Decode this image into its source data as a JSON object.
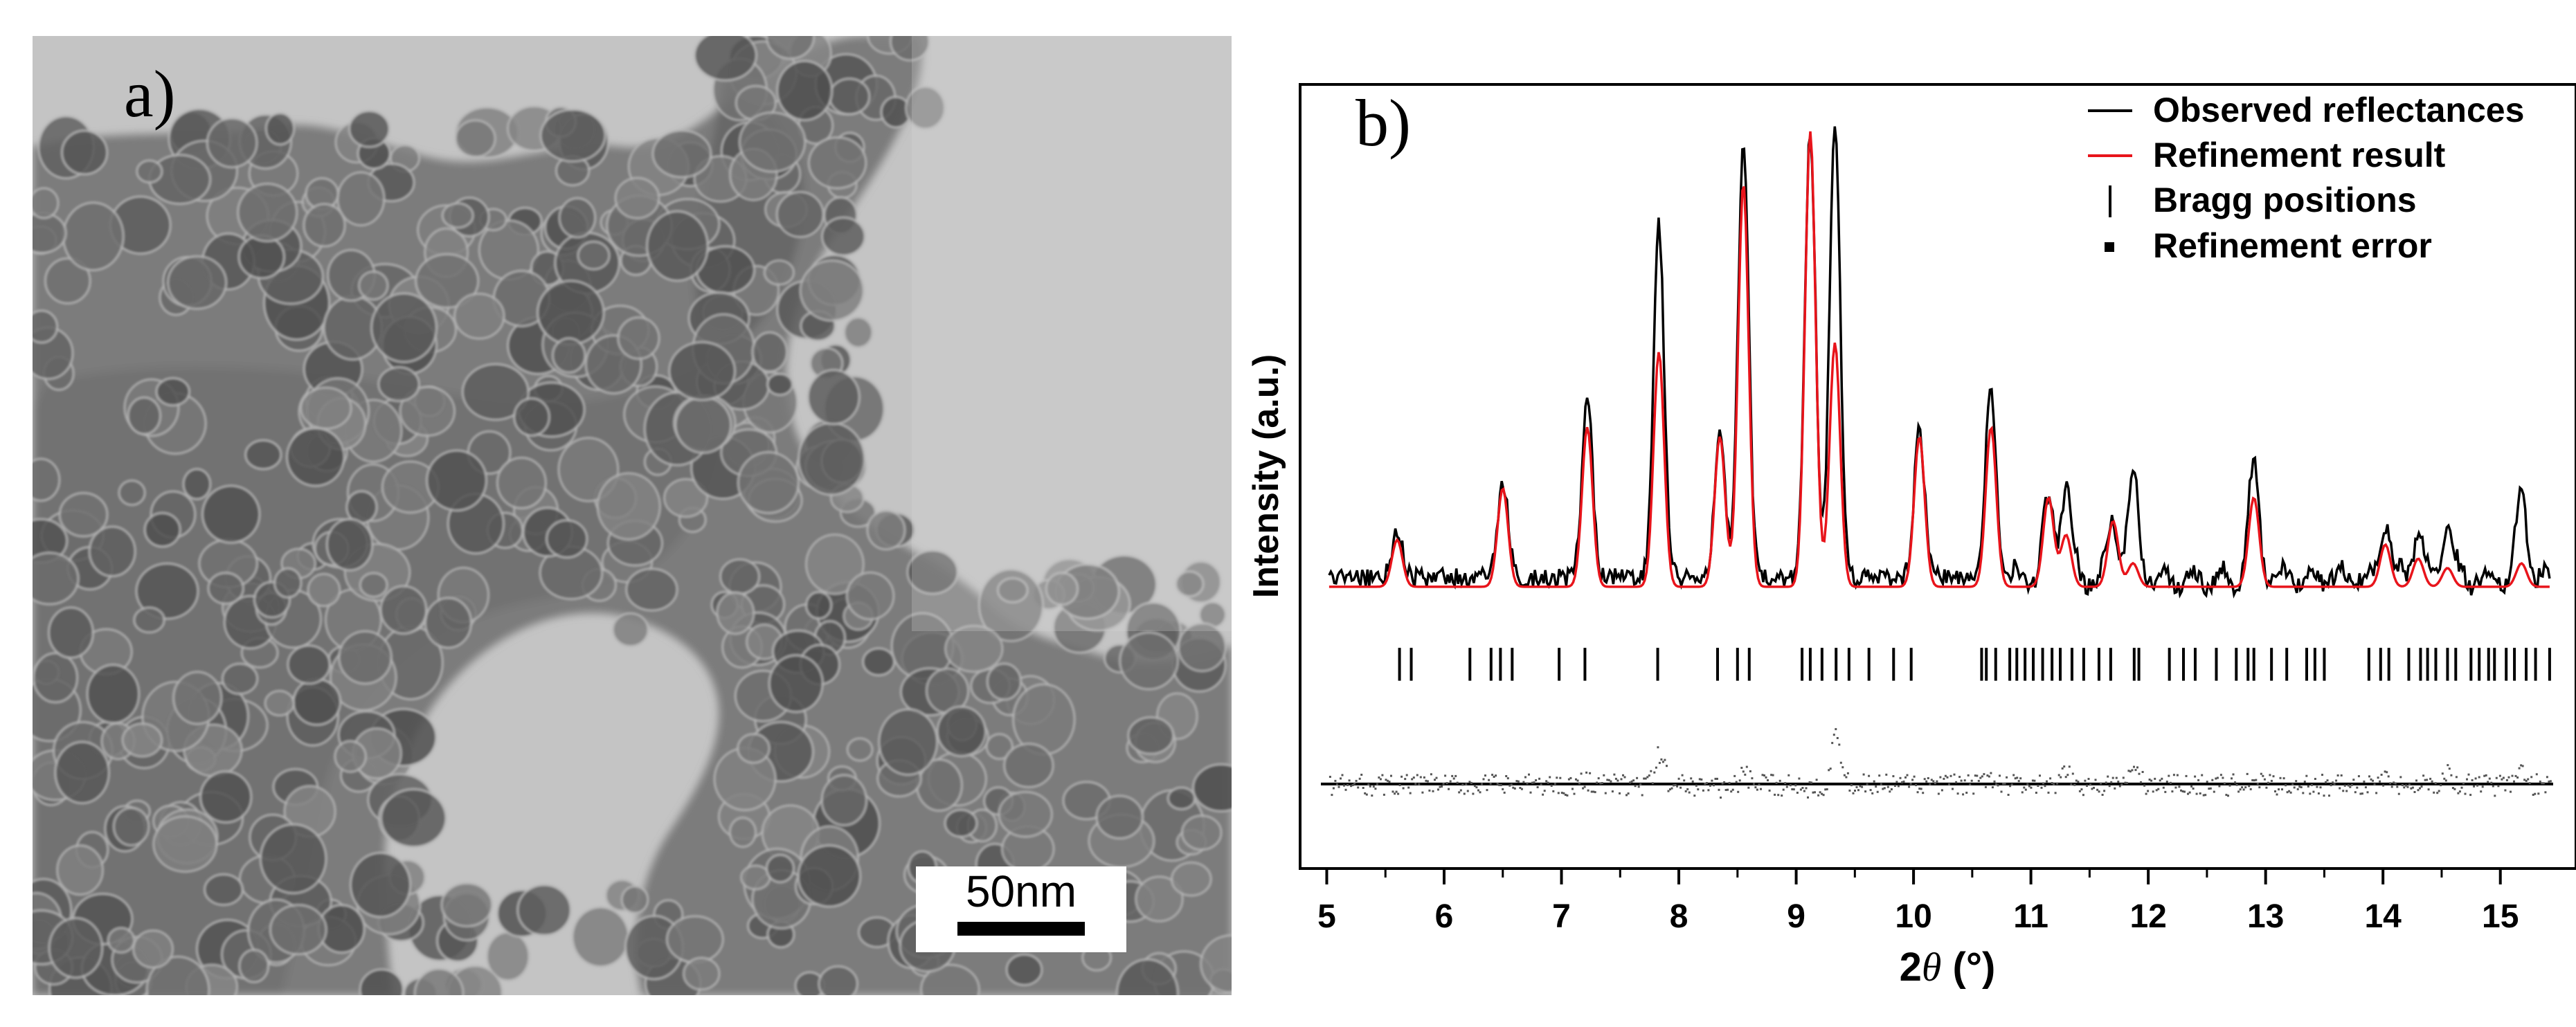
{
  "panel_a": {
    "label": "a)",
    "scale_bar": {
      "label": "50nm"
    }
  },
  "chart_data": {
    "type": "line",
    "panel_label": "b)",
    "xlabel_prefix": "2",
    "xlabel_symbol": "θ",
    "xlabel_suffix": " (°)",
    "ylabel": "Intensity (a.u.)",
    "xlim": [
      4.95,
      15.45
    ],
    "ylim": [
      -0.6,
      1.07
    ],
    "x_ticks": [
      "5",
      "6",
      "7",
      "8",
      "9",
      "10",
      "11",
      "12",
      "13",
      "14",
      "15"
    ],
    "legend": {
      "placement": "top-right",
      "entries": [
        "Observed reflectances",
        "Refinement result",
        "Bragg positions",
        "Refinement error"
      ]
    },
    "colors": {
      "observed": "#000000",
      "calculated": "#e8141b",
      "bragg": "#000000",
      "error": "#555555"
    },
    "peaks": [
      {
        "pos": 5.6,
        "obs": 0.1,
        "calc": 0.1
      },
      {
        "pos": 6.5,
        "obs": 0.2,
        "calc": 0.21
      },
      {
        "pos": 7.22,
        "obs": 0.38,
        "calc": 0.34
      },
      {
        "pos": 7.83,
        "obs": 0.75,
        "calc": 0.5
      },
      {
        "pos": 8.35,
        "obs": 0.3,
        "calc": 0.32
      },
      {
        "pos": 8.55,
        "obs": 0.93,
        "calc": 0.86
      },
      {
        "pos": 9.12,
        "obs": 0.95,
        "calc": 0.97
      },
      {
        "pos": 9.33,
        "obs": 0.98,
        "calc": 0.52
      },
      {
        "pos": 10.05,
        "obs": 0.31,
        "calc": 0.32
      },
      {
        "pos": 10.66,
        "obs": 0.4,
        "calc": 0.34
      },
      {
        "pos": 11.15,
        "obs": 0.16,
        "calc": 0.19
      },
      {
        "pos": 11.3,
        "obs": 0.2,
        "calc": 0.11
      },
      {
        "pos": 11.7,
        "obs": 0.13,
        "calc": 0.14
      },
      {
        "pos": 11.87,
        "obs": 0.21,
        "calc": 0.05
      },
      {
        "pos": 12.9,
        "obs": 0.23,
        "calc": 0.19
      },
      {
        "pos": 14.02,
        "obs": 0.12,
        "calc": 0.09
      },
      {
        "pos": 14.3,
        "obs": 0.1,
        "calc": 0.06
      },
      {
        "pos": 14.55,
        "obs": 0.12,
        "calc": 0.04
      },
      {
        "pos": 15.18,
        "obs": 0.18,
        "calc": 0.05
      }
    ],
    "bragg_positions": [
      5.62,
      5.72,
      6.22,
      6.4,
      6.48,
      6.58,
      6.98,
      7.2,
      7.82,
      8.33,
      8.5,
      8.6,
      9.05,
      9.12,
      9.22,
      9.34,
      9.45,
      9.62,
      9.83,
      9.98,
      10.58,
      10.62,
      10.7,
      10.82,
      10.88,
      10.95,
      11.02,
      11.1,
      11.18,
      11.25,
      11.35,
      11.45,
      11.58,
      11.68,
      11.88,
      11.92,
      12.18,
      12.3,
      12.4,
      12.58,
      12.75,
      12.85,
      12.9,
      13.05,
      13.18,
      13.35,
      13.42,
      13.5,
      13.88,
      13.98,
      14.05,
      14.22,
      14.32,
      14.38,
      14.45,
      14.55,
      14.62,
      14.75,
      14.82,
      14.9,
      14.95,
      15.05,
      15.12,
      15.22,
      15.3,
      15.42
    ]
  }
}
